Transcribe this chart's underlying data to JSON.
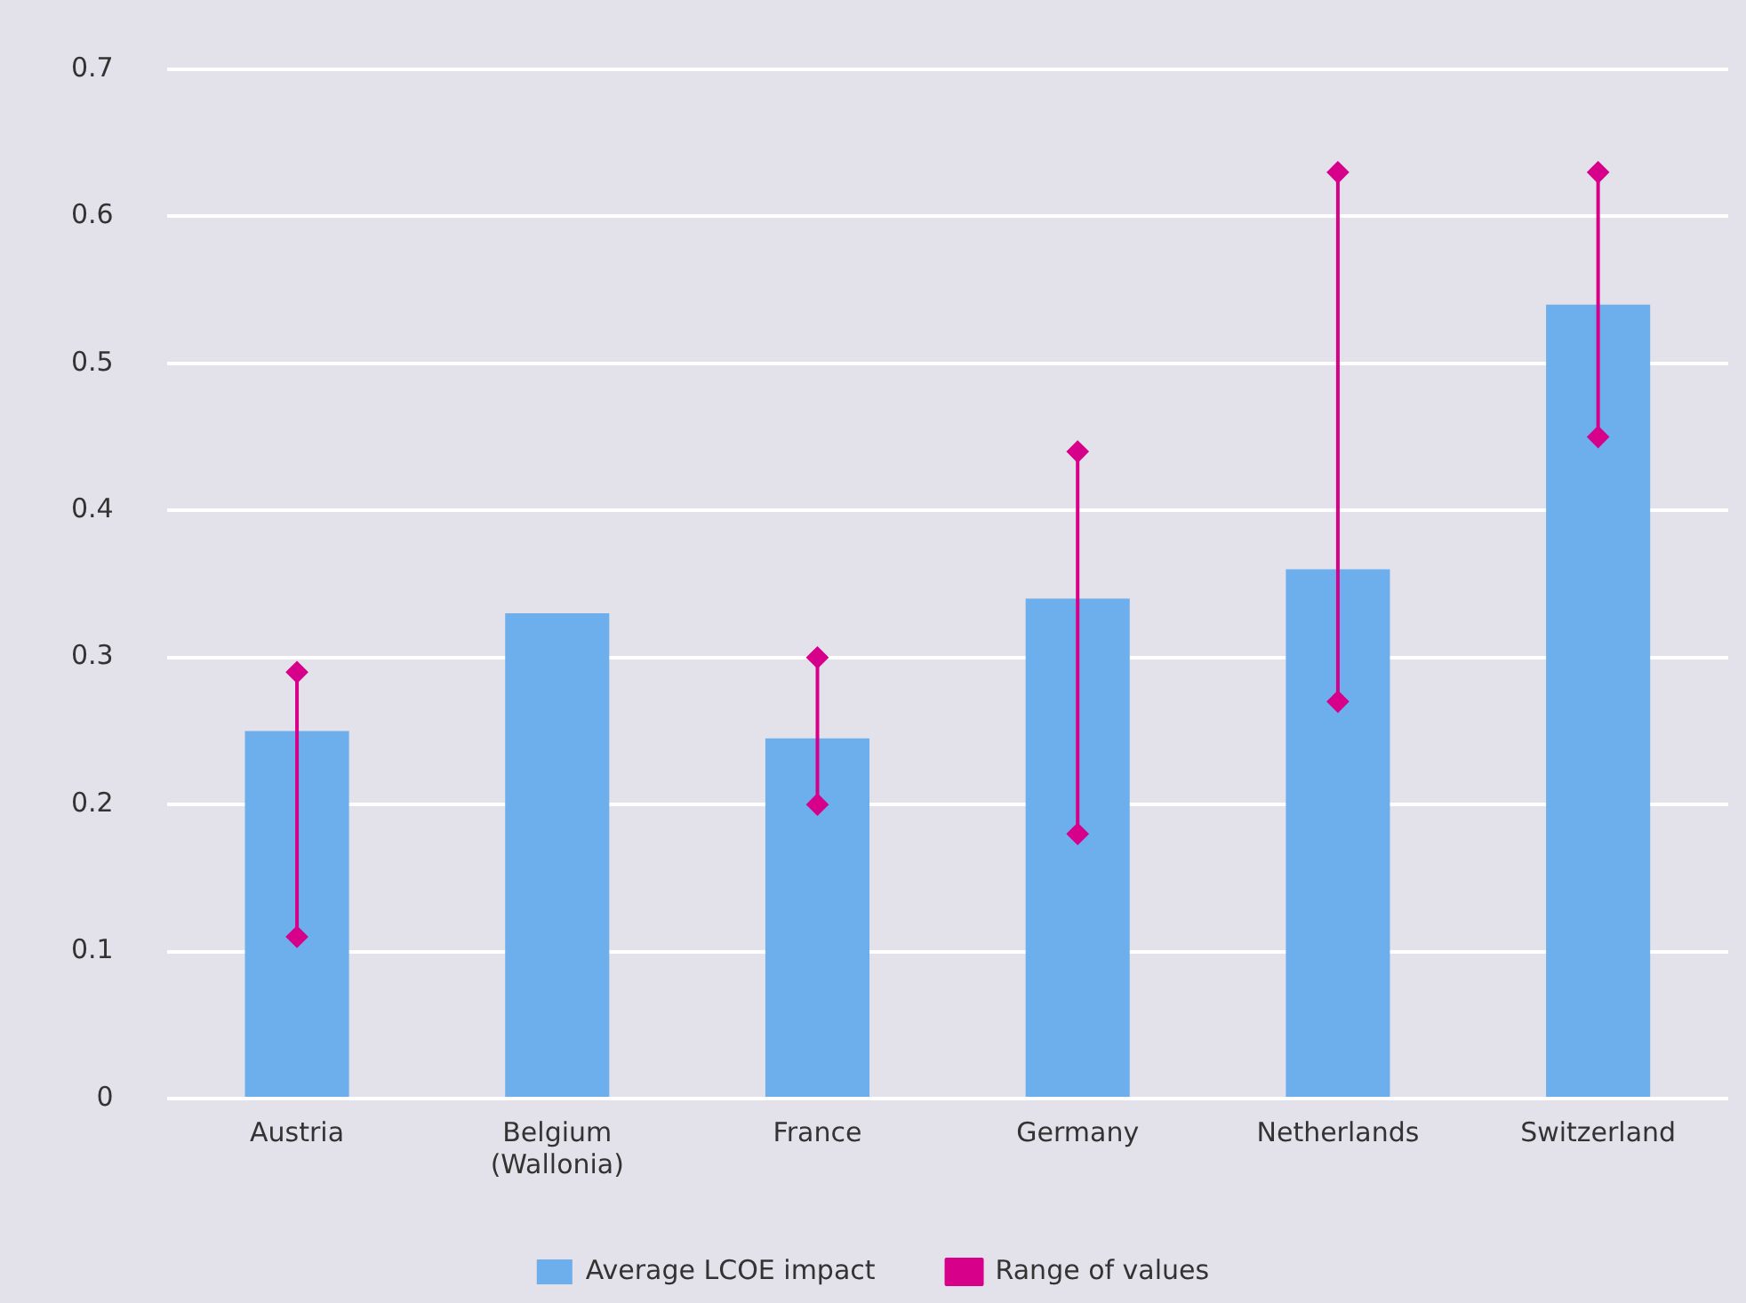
{
  "chart_data": {
    "type": "bar",
    "categories": [
      "Austria",
      "Belgium (Wallonia)",
      "France",
      "Germany",
      "Netherlands",
      "Switzerland"
    ],
    "series": [
      {
        "name": "Average LCOE impact",
        "color": "#6daeec",
        "values": [
          0.25,
          0.33,
          0.245,
          0.34,
          0.36,
          0.54
        ]
      },
      {
        "name": "Range of values",
        "type": "line",
        "color": "#d6008a",
        "marker": "diamond",
        "x": [
          "Austria",
          "Austria",
          "Austria",
          "France",
          "France",
          "France",
          "Germany",
          "Germany",
          "Germany",
          "Netherlands",
          "Netherlands",
          "Netherlands",
          "Switzerland",
          "Switzerland"
        ],
        "values": [
          0.11,
          0.29,
          null,
          0.2,
          0.3,
          null,
          0.18,
          0.44,
          null,
          0.27,
          0.63,
          null,
          0.45,
          0.63
        ]
      }
    ],
    "ylim": [
      0,
      0.7
    ],
    "yticks": [
      0,
      0.1,
      0.2,
      0.3,
      0.4,
      0.5,
      0.6,
      0.7
    ],
    "grid": "y",
    "legend": "bottom"
  }
}
